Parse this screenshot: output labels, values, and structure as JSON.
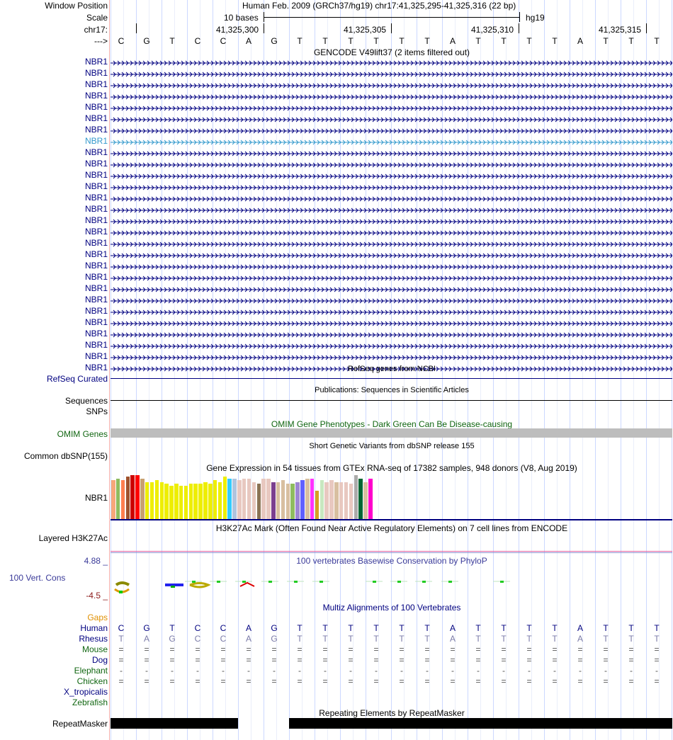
{
  "header": {
    "window_position_label": "Window Position",
    "assembly_position": "Human Feb. 2009 (GRCh37/hg19)   chr17:41,325,295-41,325,316 (22 bp)",
    "scale_label": "Scale",
    "scale_bases": "10 bases",
    "scale_db": "hg19",
    "chrom_label": "chr17:",
    "coords": [
      "41,325,300",
      "41,325,305",
      "41,325,310",
      "41,325,315"
    ],
    "strand_label": "--->",
    "bases": [
      "C",
      "G",
      "T",
      "C",
      "C",
      "A",
      "G",
      "T",
      "T",
      "T",
      "T",
      "T",
      "T",
      "A",
      "T",
      "T",
      "T",
      "T",
      "A",
      "T",
      "T",
      "T"
    ]
  },
  "gencode": {
    "title": "GENCODE V49lift37 (2 items filtered out)",
    "gene_labels": [
      "NBR1",
      "NBR1",
      "NBR1",
      "NBR1",
      "NBR1",
      "NBR1",
      "NBR1",
      "NBR1",
      "NBR1",
      "NBR1",
      "NBR1",
      "NBR1",
      "NBR1",
      "NBR1",
      "NBR1",
      "NBR1",
      "NBR1",
      "NBR1",
      "NBR1",
      "NBR1",
      "NBR1",
      "NBR1",
      "NBR1",
      "NBR1",
      "NBR1",
      "NBR1",
      "NBR1",
      "NBR1"
    ],
    "highlight_index": 7
  },
  "refseq": {
    "title": "RefSeq genes from NCBI",
    "label": "RefSeq Curated"
  },
  "publications": {
    "title": "Publications: Sequences in Scientific Articles",
    "label_line1": "Sequences",
    "label_line2": "SNPs"
  },
  "omim": {
    "title": "OMIM Gene Phenotypes - Dark Green Can Be Disease-causing",
    "label": "OMIM Genes"
  },
  "dbsnp": {
    "title": "Short Genetic Variants from dbSNP release 155",
    "label": "Common dbSNP(155)"
  },
  "gtex": {
    "title": "Gene Expression in 54 tissues from GTEx RNA-seq of 17382 samples, 948 donors (V8, Aug 2019)",
    "label": "NBR1",
    "bar_levels": [
      0.88,
      0.92,
      0.88,
      0.96,
      1.0,
      1.0,
      0.92,
      0.84,
      0.84,
      0.88,
      0.84,
      0.8,
      0.76,
      0.8,
      0.76,
      0.76,
      0.8,
      0.8,
      0.8,
      0.84,
      0.8,
      0.88,
      0.84,
      0.96,
      0.92,
      0.92,
      0.88,
      0.92,
      0.92,
      0.84,
      0.8,
      0.92,
      0.92,
      0.84,
      0.84,
      0.88,
      0.8,
      0.8,
      0.84,
      0.88,
      0.92,
      0.92,
      0.64,
      0.88,
      0.84,
      0.88,
      0.84,
      0.84,
      0.84,
      0.8,
      1.0,
      0.92,
      0.84,
      0.92
    ],
    "bar_colors": [
      "#f7a77a",
      "#8fbc5f",
      "#ff7f50",
      "#a0522d",
      "#cc0000",
      "#ff0000",
      "#c8a070",
      "#eeee00",
      "#eeee00",
      "#eeee00",
      "#eeee00",
      "#eeee00",
      "#eeee00",
      "#eeee00",
      "#eeee00",
      "#eeee00",
      "#eeee00",
      "#eeee00",
      "#eeee00",
      "#eeee00",
      "#eeee00",
      "#eeee00",
      "#eeee00",
      "#eeee00",
      "#33ccff",
      "#b0c4de",
      "#e8c8c0",
      "#e8c8c0",
      "#e8c8c0",
      "#e8c8c0",
      "#8b7355",
      "#e8c8c0",
      "#e8c8c0",
      "#7b3f8f",
      "#d8bfa0",
      "#d8bfa0",
      "#d8bfa0",
      "#8fbc5f",
      "#9d86d3",
      "#5f5fff",
      "#d8bfa0",
      "#ff33ff",
      "#d8a020",
      "#c8e8c0",
      "#e8c8c0",
      "#e8c8c0",
      "#d8bfa0",
      "#e8c8c0",
      "#e8c8c0",
      "#e8c8c0",
      "#aaaaaa",
      "#006633",
      "#d8bfa0",
      "#ff00cc"
    ]
  },
  "h3k27ac": {
    "title": "H3K27Ac Mark (Often Found Near Active Regulatory Elements) on 7 cell lines from ENCODE",
    "label": "Layered H3K27Ac"
  },
  "phylop": {
    "title": "100 vertebrates Basewise Conservation by PhyloP",
    "max_label": "4.88 _",
    "min_label": "-4.5 _",
    "label": "100 Vert. Cons"
  },
  "multiz": {
    "title": "Multiz Alignments of 100 Vertebrates",
    "species": [
      "Gaps",
      "Human",
      "Rhesus",
      "Mouse",
      "Dog",
      "Elephant",
      "Chicken",
      "X_tropicalis",
      "Zebrafish"
    ],
    "human": [
      "C",
      "G",
      "T",
      "C",
      "C",
      "A",
      "G",
      "T",
      "T",
      "T",
      "T",
      "T",
      "T",
      "A",
      "T",
      "T",
      "T",
      "T",
      "A",
      "T",
      "T",
      "T"
    ],
    "rhesus": [
      "T",
      "A",
      "G",
      "C",
      "C",
      "A",
      "G",
      "T",
      "T",
      "T",
      "T",
      "T",
      "T",
      "A",
      "T",
      "T",
      "T",
      "T",
      "A",
      "T",
      "T",
      "T"
    ],
    "mouse_char": "=",
    "dog_char": "=",
    "elephant_char": "-",
    "chicken_char": "="
  },
  "repeatmasker": {
    "title": "Repeating Elements by RepeatMasker",
    "label": "RepeatMasker"
  }
}
